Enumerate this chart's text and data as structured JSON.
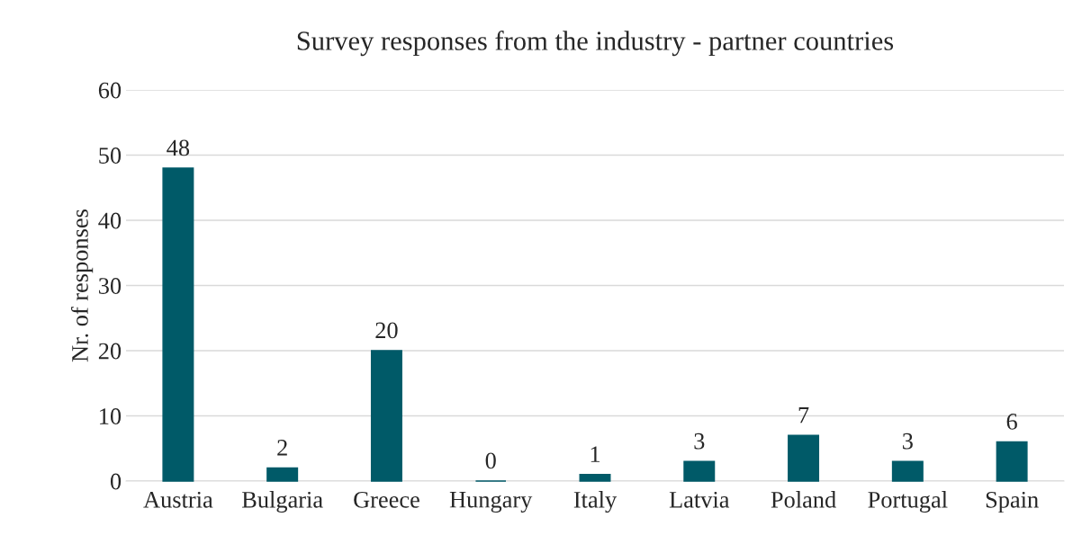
{
  "chart_data": {
    "type": "bar",
    "title": "Survey responses from the industry - partner countries",
    "ylabel": "Nr. of responses",
    "categories": [
      "Austria",
      "Bulgaria",
      "Greece",
      "Hungary",
      "Italy",
      "Latvia",
      "Poland",
      "Portugal",
      "Spain"
    ],
    "values": [
      48,
      2,
      20,
      0,
      1,
      3,
      7,
      3,
      6
    ],
    "color": "#005a68",
    "ylim": [
      0,
      60
    ],
    "yticks": [
      0,
      10,
      20,
      30,
      40,
      50,
      60
    ],
    "grid": "y",
    "data_labels": true,
    "legend": false
  }
}
